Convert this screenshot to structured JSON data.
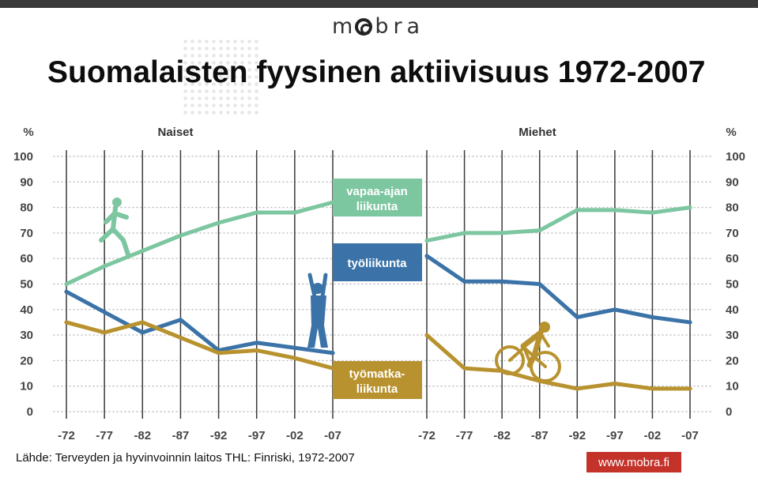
{
  "header": {
    "logo_text": "mobra"
  },
  "title": "Suomalaisten fyysinen aktiivisuus 1972-2007",
  "source": "Lähde: Terveyden ja hyvinvoinnin laitos THL: Finriski, 1972-2007",
  "website": "www.mobra.fi",
  "colors": {
    "leisure": "#7cc6a0",
    "work": "#3b73a8",
    "commute": "#b8922e",
    "gridline": "#3a3a3a",
    "button": "#c4332a"
  },
  "icons": [
    "runner-icon",
    "worker-icon",
    "cyclist-icon"
  ],
  "chart_data": [
    {
      "type": "line",
      "title": "Naiset",
      "ylabel": "%",
      "ylim": [
        0,
        100
      ],
      "yticks": [
        0,
        10,
        20,
        30,
        40,
        50,
        60,
        70,
        80,
        90,
        100
      ],
      "categories": [
        "-72",
        "-77",
        "-82",
        "-87",
        "-92",
        "-97",
        "-02",
        "-07"
      ],
      "series": [
        {
          "name": "vapaa-ajan liikunta",
          "color": "#7cc6a0",
          "values": [
            50,
            57,
            63,
            69,
            74,
            78,
            78,
            82
          ]
        },
        {
          "name": "työliikunta",
          "color": "#3b73a8",
          "values": [
            47,
            39,
            31,
            36,
            24,
            27,
            25,
            23
          ]
        },
        {
          "name": "työmatka-liikunta",
          "color": "#b8922e",
          "values": [
            35,
            31,
            35,
            29,
            23,
            24,
            21,
            17
          ]
        }
      ]
    },
    {
      "type": "line",
      "title": "Miehet",
      "ylabel": "%",
      "ylim": [
        0,
        100
      ],
      "yticks": [
        0,
        10,
        20,
        30,
        40,
        50,
        60,
        70,
        80,
        90,
        100
      ],
      "categories": [
        "-72",
        "-77",
        "-82",
        "-87",
        "-92",
        "-97",
        "-02",
        "-07"
      ],
      "series": [
        {
          "name": "vapaa-ajan liikunta",
          "color": "#7cc6a0",
          "values": [
            67,
            70,
            70,
            71,
            79,
            79,
            78,
            80
          ]
        },
        {
          "name": "työliikunta",
          "color": "#3b73a8",
          "values": [
            61,
            51,
            51,
            50,
            37,
            40,
            37,
            35
          ]
        },
        {
          "name": "työmatka-liikunta",
          "color": "#b8922e",
          "values": [
            30,
            17,
            16,
            12,
            9,
            11,
            9,
            9
          ]
        }
      ]
    }
  ]
}
